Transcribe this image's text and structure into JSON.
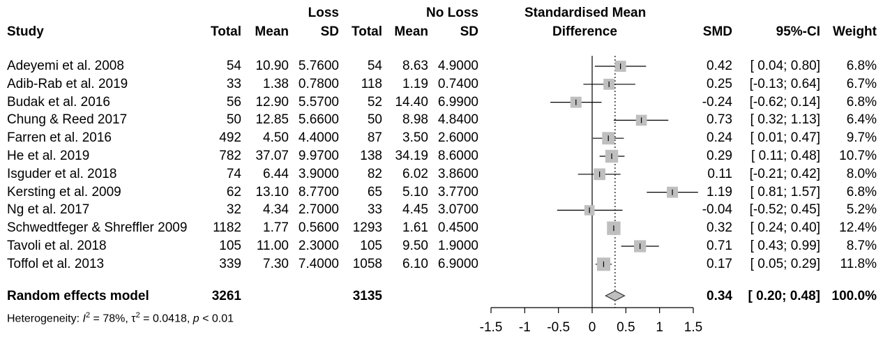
{
  "header": {
    "study": "Study",
    "loss_group": "Loss",
    "noloss_group": "No Loss",
    "total": "Total",
    "mean": "Mean",
    "sd": "SD",
    "effect_line1": "Standardised Mean",
    "effect_line2": "Difference",
    "smd": "SMD",
    "ci": "95%-CI",
    "weight": "Weight"
  },
  "rows": [
    {
      "study": "Adeyemi et al. 2008",
      "lt": "54",
      "lm": "10.90",
      "lsd": "5.7600",
      "nt": "54",
      "nm": "8.63",
      "nsd": "4.9000",
      "smd": "0.42",
      "ci": "[ 0.04; 0.80]",
      "w": "6.8%"
    },
    {
      "study": "Adib-Rab et al. 2019",
      "lt": "33",
      "lm": "1.38",
      "lsd": "0.7800",
      "nt": "118",
      "nm": "1.19",
      "nsd": "0.7400",
      "smd": "0.25",
      "ci": "[-0.13; 0.64]",
      "w": "6.7%"
    },
    {
      "study": "Budak et al. 2016",
      "lt": "56",
      "lm": "12.90",
      "lsd": "5.5700",
      "nt": "52",
      "nm": "14.40",
      "nsd": "6.9900",
      "smd": "-0.24",
      "ci": "[-0.62; 0.14]",
      "w": "6.8%"
    },
    {
      "study": "Chung & Reed 2017",
      "lt": "50",
      "lm": "12.85",
      "lsd": "5.6600",
      "nt": "50",
      "nm": "8.98",
      "nsd": "4.8400",
      "smd": "0.73",
      "ci": "[ 0.32; 1.13]",
      "w": "6.4%"
    },
    {
      "study": "Farren et al. 2016",
      "lt": "492",
      "lm": "4.50",
      "lsd": "4.4000",
      "nt": "87",
      "nm": "3.50",
      "nsd": "2.6000",
      "smd": "0.24",
      "ci": "[ 0.01; 0.47]",
      "w": "9.7%"
    },
    {
      "study": "He et al. 2019",
      "lt": "782",
      "lm": "37.07",
      "lsd": "9.9700",
      "nt": "138",
      "nm": "34.19",
      "nsd": "8.6000",
      "smd": "0.29",
      "ci": "[ 0.11; 0.48]",
      "w": "10.7%"
    },
    {
      "study": "Isguder et al. 2018",
      "lt": "74",
      "lm": "6.44",
      "lsd": "3.9000",
      "nt": "82",
      "nm": "6.02",
      "nsd": "3.8600",
      "smd": "0.11",
      "ci": "[-0.21; 0.42]",
      "w": "8.0%"
    },
    {
      "study": "Kersting et al. 2009",
      "lt": "62",
      "lm": "13.10",
      "lsd": "8.7700",
      "nt": "65",
      "nm": "5.10",
      "nsd": "3.7700",
      "smd": "1.19",
      "ci": "[ 0.81; 1.57]",
      "w": "6.8%"
    },
    {
      "study": "Ng et al. 2017",
      "lt": "32",
      "lm": "4.34",
      "lsd": "2.7000",
      "nt": "33",
      "nm": "4.45",
      "nsd": "3.0700",
      "smd": "-0.04",
      "ci": "[-0.52; 0.45]",
      "w": "5.2%"
    },
    {
      "study": "Schwedtfeger & Shreffler 2009",
      "lt": "1182",
      "lm": "1.77",
      "lsd": "0.5600",
      "nt": "1293",
      "nm": "1.61",
      "nsd": "0.4500",
      "smd": "0.32",
      "ci": "[ 0.24; 0.40]",
      "w": "12.4%"
    },
    {
      "study": "Tavoli et al. 2018",
      "lt": "105",
      "lm": "11.00",
      "lsd": "2.3000",
      "nt": "105",
      "nm": "9.50",
      "nsd": "1.9000",
      "smd": "0.71",
      "ci": "[ 0.43; 0.99]",
      "w": "8.7%"
    },
    {
      "study": "Toffol et al. 2013",
      "lt": "339",
      "lm": "7.30",
      "lsd": "7.4000",
      "nt": "1058",
      "nm": "6.10",
      "nsd": "6.9000",
      "smd": "0.17",
      "ci": "[ 0.05; 0.29]",
      "w": "11.8%"
    }
  ],
  "summary": {
    "label": "Random effects model",
    "lt": "3261",
    "nt": "3135",
    "smd": "0.34",
    "ci": "[ 0.20; 0.48]",
    "w": "100.0%"
  },
  "heterogeneity": {
    "prefix": "Heterogeneity: ",
    "i2_symbol": "I",
    "i2_sup": "2",
    "i2_value": " = 78%, ",
    "tau_symbol": "τ",
    "tau_sup": "2",
    "tau_value": " = 0.0418, ",
    "p_symbol": "p",
    "p_value": " < 0.01"
  },
  "chart_data": {
    "type": "forest",
    "xlim": [
      -1.5,
      1.5
    ],
    "ticks": [
      -1.5,
      -1,
      -0.5,
      0,
      0.5,
      1,
      1.5
    ],
    "tick_labels": [
      "-1.5",
      "-1",
      "-0.5",
      "0",
      "0.5",
      "1",
      "1.5"
    ],
    "null_line": 0,
    "summary_line": 0.34,
    "studies": [
      {
        "name": "Adeyemi et al. 2008",
        "smd": 0.42,
        "lo": 0.04,
        "hi": 0.8,
        "weight": 6.8
      },
      {
        "name": "Adib-Rab et al. 2019",
        "smd": 0.25,
        "lo": -0.13,
        "hi": 0.64,
        "weight": 6.7
      },
      {
        "name": "Budak et al. 2016",
        "smd": -0.24,
        "lo": -0.62,
        "hi": 0.14,
        "weight": 6.8
      },
      {
        "name": "Chung & Reed 2017",
        "smd": 0.73,
        "lo": 0.32,
        "hi": 1.13,
        "weight": 6.4
      },
      {
        "name": "Farren et al. 2016",
        "smd": 0.24,
        "lo": 0.01,
        "hi": 0.47,
        "weight": 9.7
      },
      {
        "name": "He et al. 2019",
        "smd": 0.29,
        "lo": 0.11,
        "hi": 0.48,
        "weight": 10.7
      },
      {
        "name": "Isguder et al. 2018",
        "smd": 0.11,
        "lo": -0.21,
        "hi": 0.42,
        "weight": 8.0
      },
      {
        "name": "Kersting et al. 2009",
        "smd": 1.19,
        "lo": 0.81,
        "hi": 1.57,
        "weight": 6.8
      },
      {
        "name": "Ng et al. 2017",
        "smd": -0.04,
        "lo": -0.52,
        "hi": 0.45,
        "weight": 5.2
      },
      {
        "name": "Schwedtfeger & Shreffler 2009",
        "smd": 0.32,
        "lo": 0.24,
        "hi": 0.4,
        "weight": 12.4
      },
      {
        "name": "Tavoli et al. 2018",
        "smd": 0.71,
        "lo": 0.43,
        "hi": 0.99,
        "weight": 8.7
      },
      {
        "name": "Toffol et al. 2013",
        "smd": 0.17,
        "lo": 0.05,
        "hi": 0.29,
        "weight": 11.8
      }
    ],
    "pooled": {
      "smd": 0.34,
      "lo": 0.2,
      "hi": 0.48
    },
    "colors": {
      "box": "#bfbfbf",
      "line": "#000000",
      "diamond": "#bfbfbf"
    }
  }
}
